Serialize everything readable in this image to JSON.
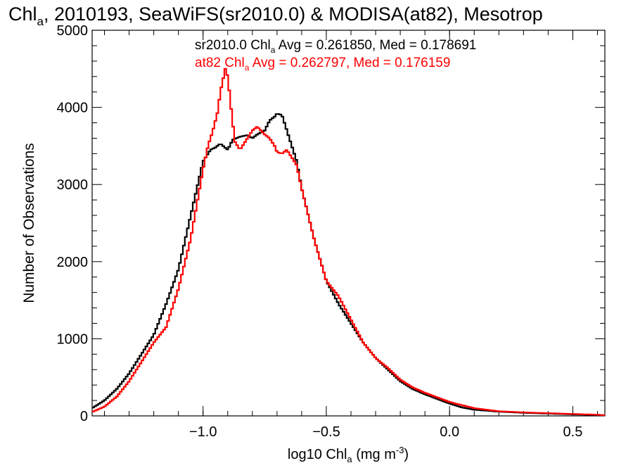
{
  "chart_data": {
    "type": "line",
    "title": {
      "prefix": "Chl",
      "sub": "a",
      "rest": ", 2010193, SeaWiFS(sr2010.0) & MODISA(at82), Mesotrop"
    },
    "xlabel": {
      "prefix": "log10 Chl",
      "sub": "a",
      "mid": " (mg m",
      "sup": "-3",
      "suffix": ")"
    },
    "ylabel": "Number of Observations",
    "xlim": [
      -1.45,
      0.63
    ],
    "ylim": [
      0,
      5000
    ],
    "x_ticks": [
      -1.0,
      -0.5,
      0.0,
      0.5
    ],
    "x_tick_labels": [
      "−1.0",
      "−0.5",
      "0.0",
      "0.5"
    ],
    "y_ticks": [
      0,
      1000,
      2000,
      3000,
      4000,
      5000
    ],
    "y_tick_labels": [
      "0",
      "1000",
      "2000",
      "3000",
      "4000",
      "5000"
    ],
    "legend": [
      {
        "name": "sr2010.0",
        "prefix": "sr2010.0 Chl",
        "sub": "a",
        "rest": " Avg = 0.261850, Med = 0.178691",
        "color": "#000000"
      },
      {
        "name": "at82",
        "prefix": "at82 Chl",
        "sub": "a",
        "rest": " Avg = 0.262797, Med = 0.176159",
        "color": "#ff0000"
      }
    ],
    "legend_position": "top-right",
    "grid": false,
    "series": [
      {
        "name": "sr2010.0",
        "color": "#000000",
        "x": [
          -1.45,
          -1.4,
          -1.35,
          -1.3,
          -1.25,
          -1.2,
          -1.15,
          -1.1,
          -1.05,
          -1.0,
          -0.97,
          -0.95,
          -0.93,
          -0.9,
          -0.88,
          -0.85,
          -0.82,
          -0.8,
          -0.78,
          -0.75,
          -0.73,
          -0.71,
          -0.7,
          -0.68,
          -0.66,
          -0.64,
          -0.62,
          -0.6,
          -0.55,
          -0.5,
          -0.45,
          -0.4,
          -0.35,
          -0.3,
          -0.25,
          -0.2,
          -0.15,
          -0.1,
          -0.05,
          0.0,
          0.05,
          0.1,
          0.2,
          0.3,
          0.4,
          0.5,
          0.6,
          0.63
        ],
        "y": [
          100,
          200,
          350,
          550,
          800,
          1050,
          1450,
          1900,
          2600,
          3300,
          3450,
          3480,
          3530,
          3450,
          3580,
          3620,
          3640,
          3600,
          3650,
          3700,
          3830,
          3880,
          3920,
          3900,
          3700,
          3500,
          3300,
          2950,
          2300,
          1750,
          1450,
          1200,
          950,
          750,
          600,
          450,
          350,
          280,
          220,
          160,
          110,
          80,
          55,
          40,
          30,
          20,
          10,
          5
        ]
      },
      {
        "name": "at82",
        "color": "#ff0000",
        "x": [
          -1.45,
          -1.4,
          -1.35,
          -1.3,
          -1.25,
          -1.2,
          -1.15,
          -1.1,
          -1.05,
          -1.0,
          -0.98,
          -0.96,
          -0.94,
          -0.93,
          -0.92,
          -0.91,
          -0.9,
          -0.89,
          -0.88,
          -0.87,
          -0.85,
          -0.82,
          -0.8,
          -0.78,
          -0.75,
          -0.73,
          -0.71,
          -0.7,
          -0.68,
          -0.66,
          -0.64,
          -0.62,
          -0.6,
          -0.55,
          -0.5,
          -0.45,
          -0.4,
          -0.35,
          -0.3,
          -0.25,
          -0.2,
          -0.15,
          -0.1,
          -0.05,
          0.0,
          0.05,
          0.1,
          0.2,
          0.3,
          0.4,
          0.5,
          0.6,
          0.63
        ],
        "y": [
          50,
          120,
          250,
          450,
          700,
          950,
          1150,
          1650,
          2300,
          3200,
          3500,
          3700,
          3950,
          4200,
          4350,
          4500,
          4400,
          4100,
          3800,
          3550,
          3450,
          3600,
          3700,
          3750,
          3650,
          3600,
          3500,
          3420,
          3400,
          3450,
          3350,
          3250,
          2950,
          2300,
          1750,
          1550,
          1250,
          950,
          750,
          620,
          470,
          370,
          300,
          240,
          180,
          140,
          100,
          60,
          45,
          35,
          25,
          15,
          8
        ]
      }
    ]
  }
}
